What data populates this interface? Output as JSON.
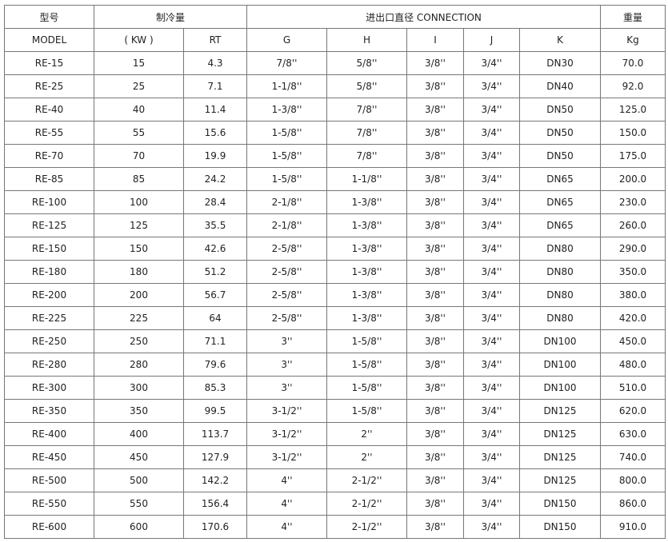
{
  "header": {
    "model_cn": "型号",
    "model_en": "MODEL",
    "capacity": "制冷量",
    "connection": "进出口直径 CONNECTION",
    "weight": "重量",
    "sub": [
      "( KW )",
      "RT",
      "G",
      "H",
      "I",
      "J",
      "K",
      "Kg"
    ]
  },
  "rows": [
    [
      "RE-15",
      "15",
      "4.3",
      "7/8''",
      "5/8''",
      "3/8''",
      "3/4''",
      "DN30",
      "70.0"
    ],
    [
      "RE-25",
      "25",
      "7.1",
      "1-1/8''",
      "5/8''",
      "3/8''",
      "3/4''",
      "DN40",
      "92.0"
    ],
    [
      "RE-40",
      "40",
      "11.4",
      "1-3/8''",
      "7/8''",
      "3/8''",
      "3/4''",
      "DN50",
      "125.0"
    ],
    [
      "RE-55",
      "55",
      "15.6",
      "1-5/8''",
      "7/8''",
      "3/8''",
      "3/4''",
      "DN50",
      "150.0"
    ],
    [
      "RE-70",
      "70",
      "19.9",
      "1-5/8''",
      "7/8''",
      "3/8''",
      "3/4''",
      "DN50",
      "175.0"
    ],
    [
      "RE-85",
      "85",
      "24.2",
      "1-5/8''",
      "1-1/8''",
      "3/8''",
      "3/4''",
      "DN65",
      "200.0"
    ],
    [
      "RE-100",
      "100",
      "28.4",
      "2-1/8''",
      "1-3/8''",
      "3/8''",
      "3/4''",
      "DN65",
      "230.0"
    ],
    [
      "RE-125",
      "125",
      "35.5",
      "2-1/8''",
      "1-3/8''",
      "3/8''",
      "3/4''",
      "DN65",
      "260.0"
    ],
    [
      "RE-150",
      "150",
      "42.6",
      "2-5/8''",
      "1-3/8''",
      "3/8''",
      "3/4''",
      "DN80",
      "290.0"
    ],
    [
      "RE-180",
      "180",
      "51.2",
      "2-5/8''",
      "1-3/8''",
      "3/8''",
      "3/4''",
      "DN80",
      "350.0"
    ],
    [
      "RE-200",
      "200",
      "56.7",
      "2-5/8''",
      "1-3/8''",
      "3/8''",
      "3/4''",
      "DN80",
      "380.0"
    ],
    [
      "RE-225",
      "225",
      "64",
      "2-5/8''",
      "1-3/8''",
      "3/8''",
      "3/4''",
      "DN80",
      "420.0"
    ],
    [
      "RE-250",
      "250",
      "71.1",
      "3''",
      "1-5/8''",
      "3/8''",
      "3/4''",
      "DN100",
      "450.0"
    ],
    [
      "RE-280",
      "280",
      "79.6",
      "3''",
      "1-5/8''",
      "3/8''",
      "3/4''",
      "DN100",
      "480.0"
    ],
    [
      "RE-300",
      "300",
      "85.3",
      "3''",
      "1-5/8''",
      "3/8''",
      "3/4''",
      "DN100",
      "510.0"
    ],
    [
      "RE-350",
      "350",
      "99.5",
      "3-1/2''",
      "1-5/8''",
      "3/8''",
      "3/4''",
      "DN125",
      "620.0"
    ],
    [
      "RE-400",
      "400",
      "113.7",
      "3-1/2''",
      "2''",
      "3/8''",
      "3/4''",
      "DN125",
      "630.0"
    ],
    [
      "RE-450",
      "450",
      "127.9",
      "3-1/2''",
      "2''",
      "3/8''",
      "3/4''",
      "DN125",
      "740.0"
    ],
    [
      "RE-500",
      "500",
      "142.2",
      "4''",
      "2-1/2''",
      "3/8''",
      "3/4''",
      "DN125",
      "800.0"
    ],
    [
      "RE-550",
      "550",
      "156.4",
      "4''",
      "2-1/2''",
      "3/8''",
      "3/4''",
      "DN150",
      "860.0"
    ],
    [
      "RE-600",
      "600",
      "170.6",
      "4''",
      "2-1/2''",
      "3/8''",
      "3/4''",
      "DN150",
      "910.0"
    ]
  ]
}
